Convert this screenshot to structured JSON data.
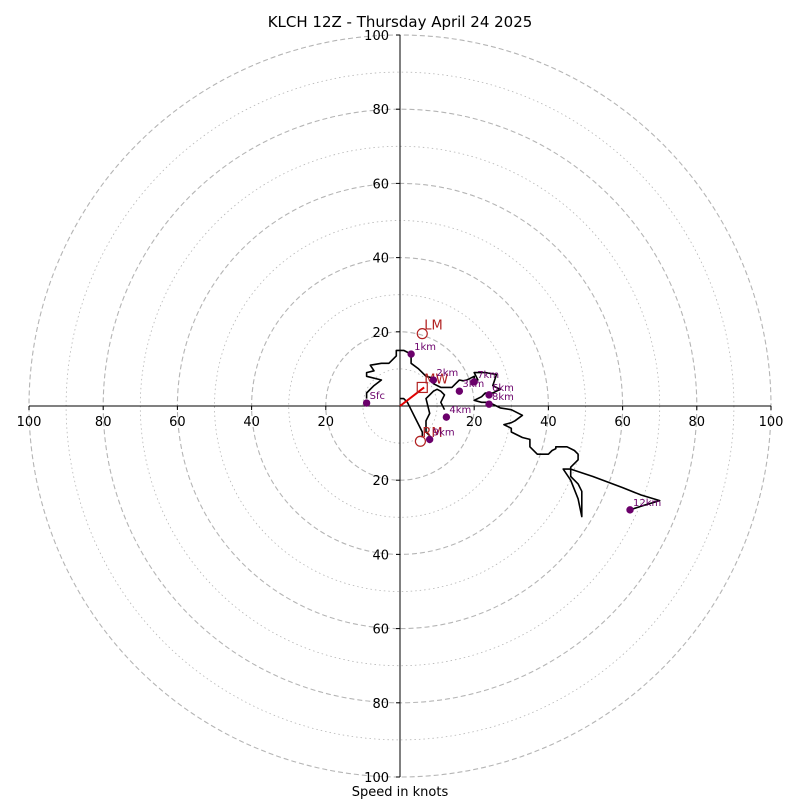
{
  "chart_data": {
    "type": "hodograph",
    "title": "KLCH 12Z - Thursday April 24 2025",
    "xlabel": "Speed in knots",
    "ylabel": "",
    "xlim": [
      -100,
      100
    ],
    "ylim": [
      -100,
      100
    ],
    "ticks": {
      "x": [
        {
          "value": -100,
          "label": "100"
        },
        {
          "value": -80,
          "label": "80"
        },
        {
          "value": -60,
          "label": "60"
        },
        {
          "value": -40,
          "label": "40"
        },
        {
          "value": -20,
          "label": "20"
        },
        {
          "value": 20,
          "label": "20"
        },
        {
          "value": 40,
          "label": "40"
        },
        {
          "value": 60,
          "label": "60"
        },
        {
          "value": 80,
          "label": "80"
        },
        {
          "value": 100,
          "label": "100"
        }
      ],
      "y": [
        {
          "value": 100,
          "label": "100"
        },
        {
          "value": 80,
          "label": "80"
        },
        {
          "value": 60,
          "label": "60"
        },
        {
          "value": 40,
          "label": "40"
        },
        {
          "value": 20,
          "label": "20"
        },
        {
          "value": -20,
          "label": "20"
        },
        {
          "value": -40,
          "label": "40"
        },
        {
          "value": -60,
          "label": "60"
        },
        {
          "value": -80,
          "label": "80"
        },
        {
          "value": -100,
          "label": "100"
        }
      ]
    },
    "rings_major": [
      20,
      40,
      60,
      80,
      100
    ],
    "rings_minor": [
      10,
      30,
      50,
      70,
      90
    ],
    "hodograph_trace": [
      [
        -9,
        2
      ],
      [
        -9,
        3.5
      ],
      [
        -7,
        5.5
      ],
      [
        -5,
        7
      ],
      [
        -9,
        8
      ],
      [
        -9,
        9
      ],
      [
        -7,
        9.5
      ],
      [
        -8,
        11
      ],
      [
        -5,
        11.5
      ],
      [
        -3,
        11.5
      ],
      [
        -1,
        13.5
      ],
      [
        -1,
        15
      ],
      [
        1,
        15
      ],
      [
        3,
        14
      ],
      [
        3,
        11.5
      ],
      [
        5,
        10
      ],
      [
        6,
        9
      ],
      [
        7,
        8
      ],
      [
        9,
        7.5
      ],
      [
        9,
        6
      ],
      [
        11,
        5
      ],
      [
        14,
        5
      ],
      [
        15,
        6
      ],
      [
        16,
        7
      ],
      [
        17,
        6.8
      ],
      [
        18,
        7
      ],
      [
        19,
        7.5
      ],
      [
        20,
        8
      ],
      [
        20,
        7
      ],
      [
        21,
        7
      ],
      [
        20,
        9
      ],
      [
        23,
        9
      ],
      [
        26,
        8.5
      ],
      [
        25,
        5.5
      ],
      [
        27,
        4.5
      ],
      [
        25,
        3.5
      ],
      [
        23,
        3.5
      ],
      [
        22,
        2.5
      ],
      [
        20,
        1.5
      ],
      [
        22,
        1
      ],
      [
        24,
        1
      ],
      [
        27,
        -0.5
      ],
      [
        30,
        -1
      ],
      [
        33,
        -2.5
      ],
      [
        31,
        -4
      ],
      [
        30,
        -4.5
      ],
      [
        28,
        -5
      ],
      [
        30,
        -6
      ],
      [
        30,
        -7
      ],
      [
        33,
        -8.5
      ],
      [
        35,
        -9
      ],
      [
        35,
        -11
      ],
      [
        37,
        -13
      ],
      [
        40,
        -13
      ],
      [
        41,
        -12
      ],
      [
        42,
        -11.5
      ],
      [
        42,
        -11
      ],
      [
        45,
        -11
      ],
      [
        47,
        -12
      ],
      [
        48,
        -13
      ],
      [
        48,
        -14.5
      ],
      [
        46,
        -16.5
      ],
      [
        46,
        -17
      ],
      [
        46,
        -18
      ],
      [
        46,
        -19
      ],
      [
        47,
        -20
      ],
      [
        48,
        -21
      ],
      [
        49,
        -23
      ],
      [
        49,
        -25
      ],
      [
        49,
        -26
      ],
      [
        49,
        -27
      ],
      [
        49,
        -28
      ],
      [
        49,
        -29
      ],
      [
        49,
        -29.8
      ],
      [
        48,
        -25
      ],
      [
        46,
        -20
      ],
      [
        44,
        -17
      ],
      [
        46,
        -17
      ],
      [
        52,
        -19
      ],
      [
        60,
        -22
      ],
      [
        65,
        -24
      ],
      [
        70,
        -25.5
      ],
      [
        65,
        -27
      ],
      [
        62,
        -28
      ]
    ],
    "lower_trace": [
      [
        12,
        -1
      ],
      [
        11,
        1
      ],
      [
        12,
        3
      ],
      [
        11,
        4
      ],
      [
        10,
        4.5
      ],
      [
        9,
        4
      ],
      [
        8,
        3
      ],
      [
        7,
        2
      ],
      [
        8,
        -2
      ],
      [
        7,
        -4
      ],
      [
        7,
        -7
      ],
      [
        8,
        -8
      ],
      [
        8,
        -10
      ]
    ],
    "lower_trace_left": [
      [
        6,
        -8.5
      ],
      [
        6,
        -7
      ],
      [
        5,
        -5
      ],
      [
        4,
        -3
      ],
      [
        3,
        -1
      ],
      [
        2,
        1
      ],
      [
        1,
        2
      ],
      [
        0,
        2
      ]
    ],
    "height_markers": [
      {
        "label": "Sfc",
        "u": -9,
        "v": 0.8
      },
      {
        "label": "1km",
        "u": 3,
        "v": 14
      },
      {
        "label": "2km",
        "u": 9,
        "v": 7
      },
      {
        "label": "3km",
        "u": 16,
        "v": 4
      },
      {
        "label": "4km",
        "u": 12.5,
        "v": -3
      },
      {
        "label": "7km",
        "u": 20,
        "v": 6.5
      },
      {
        "label": "6km",
        "u": 24,
        "v": 3
      },
      {
        "label": "8km",
        "u": 24,
        "v": 0.5
      },
      {
        "label": "9km",
        "u": 8,
        "v": -9
      },
      {
        "label": "12km",
        "u": 62,
        "v": -28
      }
    ],
    "storm_motion": [
      {
        "label": "LM",
        "u": 6,
        "v": 19.5,
        "marker": "circle"
      },
      {
        "label": "RM",
        "u": 5.5,
        "v": -9.5,
        "marker": "circle"
      },
      {
        "label": "MW",
        "u": 6,
        "v": 5,
        "marker": "square"
      }
    ],
    "shear_vector": {
      "u0": 0,
      "v0": 0,
      "u1": 6.5,
      "v1": 5
    },
    "colors": {
      "trace": "#000000",
      "markers": "#6b006b",
      "storm_motion": "#b22222",
      "shear": "#e00000",
      "grid": "#b5b5b5"
    }
  }
}
